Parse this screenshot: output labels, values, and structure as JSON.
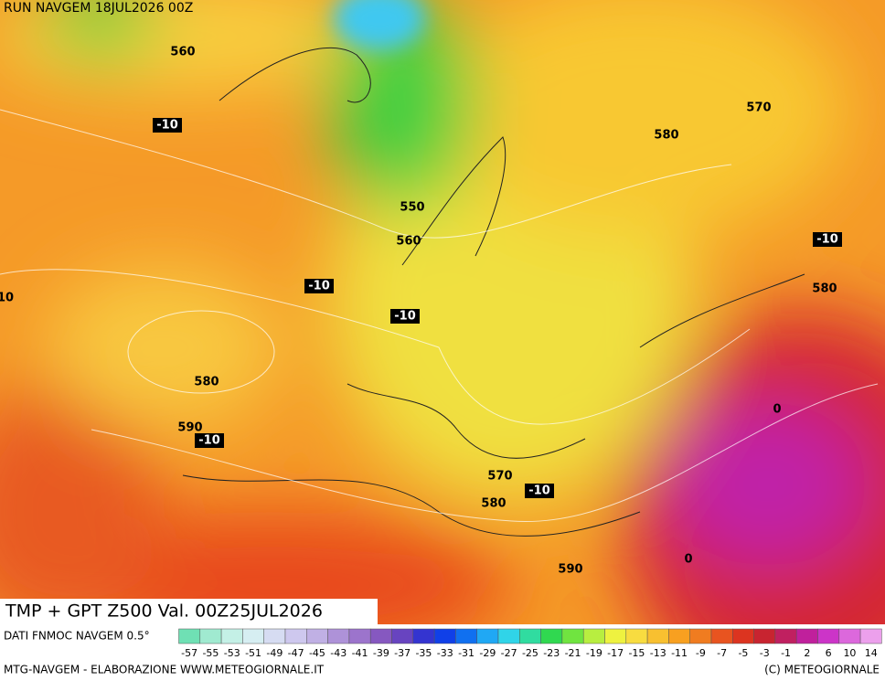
{
  "header": {
    "run": "RUN NAVGEM 18JUL2026 00Z"
  },
  "map": {
    "contour_labels": [
      560,
      -10,
      550,
      560,
      580,
      570,
      -10,
      580,
      -10,
      -10,
      10,
      580,
      590,
      -10,
      0,
      570,
      -10,
      580,
      0,
      590
    ]
  },
  "title": "TMP + GPT Z500 Val. 00Z25JUL2026",
  "footer": {
    "source": "DATI FNMOC NAVGEM 0.5°",
    "credit": "MTG-NAVGEM - ELABORAZIONE WWW.METEOGIORNALE.IT",
    "copyright": "(C) METEOGIORNALE"
  },
  "colorbar": {
    "labels": [
      -57,
      -55,
      -53,
      -51,
      -49,
      -47,
      -45,
      -43,
      -41,
      -39,
      -37,
      -35,
      -33,
      -31,
      -29,
      -27,
      -25,
      -23,
      -21,
      -19,
      -17,
      -15,
      -13,
      -11,
      -9,
      -7,
      -5,
      -3,
      -1,
      2,
      6,
      10,
      14
    ],
    "colors": [
      "#6fe0b4",
      "#a0ead0",
      "#c4f0e6",
      "#d6eef2",
      "#d6dcf2",
      "#cec8ee",
      "#c0b0e4",
      "#ae92d8",
      "#9c74cc",
      "#8658c0",
      "#6844c0",
      "#3434d0",
      "#1040e8",
      "#1070f0",
      "#20a8f4",
      "#30d4e8",
      "#30dca0",
      "#30d850",
      "#70e440",
      "#b8ee40",
      "#eef240",
      "#f8dc40",
      "#f8c030",
      "#f8a020",
      "#f07c20",
      "#e85420",
      "#dc3420",
      "#c82430",
      "#c02060",
      "#c0209c",
      "#cc34c8",
      "#dc68dc",
      "#eca0ec"
    ]
  }
}
